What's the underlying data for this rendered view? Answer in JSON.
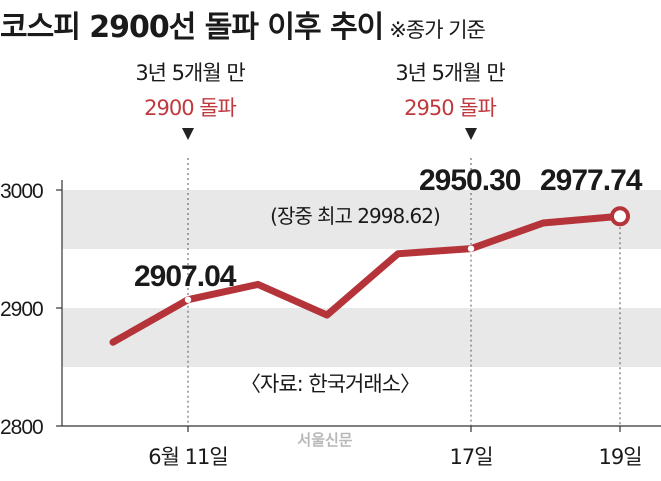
{
  "chart_data": {
    "type": "line",
    "title": "코스피 2900선 돌파 이후 추이",
    "subtitle": "※종가 기준",
    "source": "〈자료: 한국거래소〉",
    "watermark": "서울신문",
    "x": [
      "",
      "6월 11일",
      "",
      "",
      "",
      "17일",
      "",
      "19일"
    ],
    "values": [
      2871,
      2907.04,
      2920,
      2894,
      2946,
      2950.3,
      2972,
      2977.74
    ],
    "ylim": [
      2800,
      3000
    ],
    "yticks": [
      "2800",
      "2900",
      "3000"
    ],
    "xtick_labels": [
      {
        "index": 1,
        "label": "6월 11일"
      },
      {
        "index": 5,
        "label": "17일"
      },
      {
        "index": 7,
        "label": "19일"
      }
    ],
    "data_labels": [
      {
        "index": 1,
        "label": "2907.04"
      },
      {
        "index": 5,
        "label": "2950.30"
      },
      {
        "index": 7,
        "label": "2977.74"
      }
    ],
    "annotations": [
      {
        "index": 1,
        "line1": "3년 5개월 만",
        "line2": "2900 돌파"
      },
      {
        "index": 5,
        "line1": "3년 5개월 만",
        "line2": "2950 돌파"
      }
    ],
    "note": "(장중 최고 2998.62)",
    "grid": "alternating bands",
    "colors": {
      "line": "#b5343a",
      "highlight": "#c0393f",
      "band": "#e8e8e8",
      "text": "#1a1a1a"
    }
  }
}
